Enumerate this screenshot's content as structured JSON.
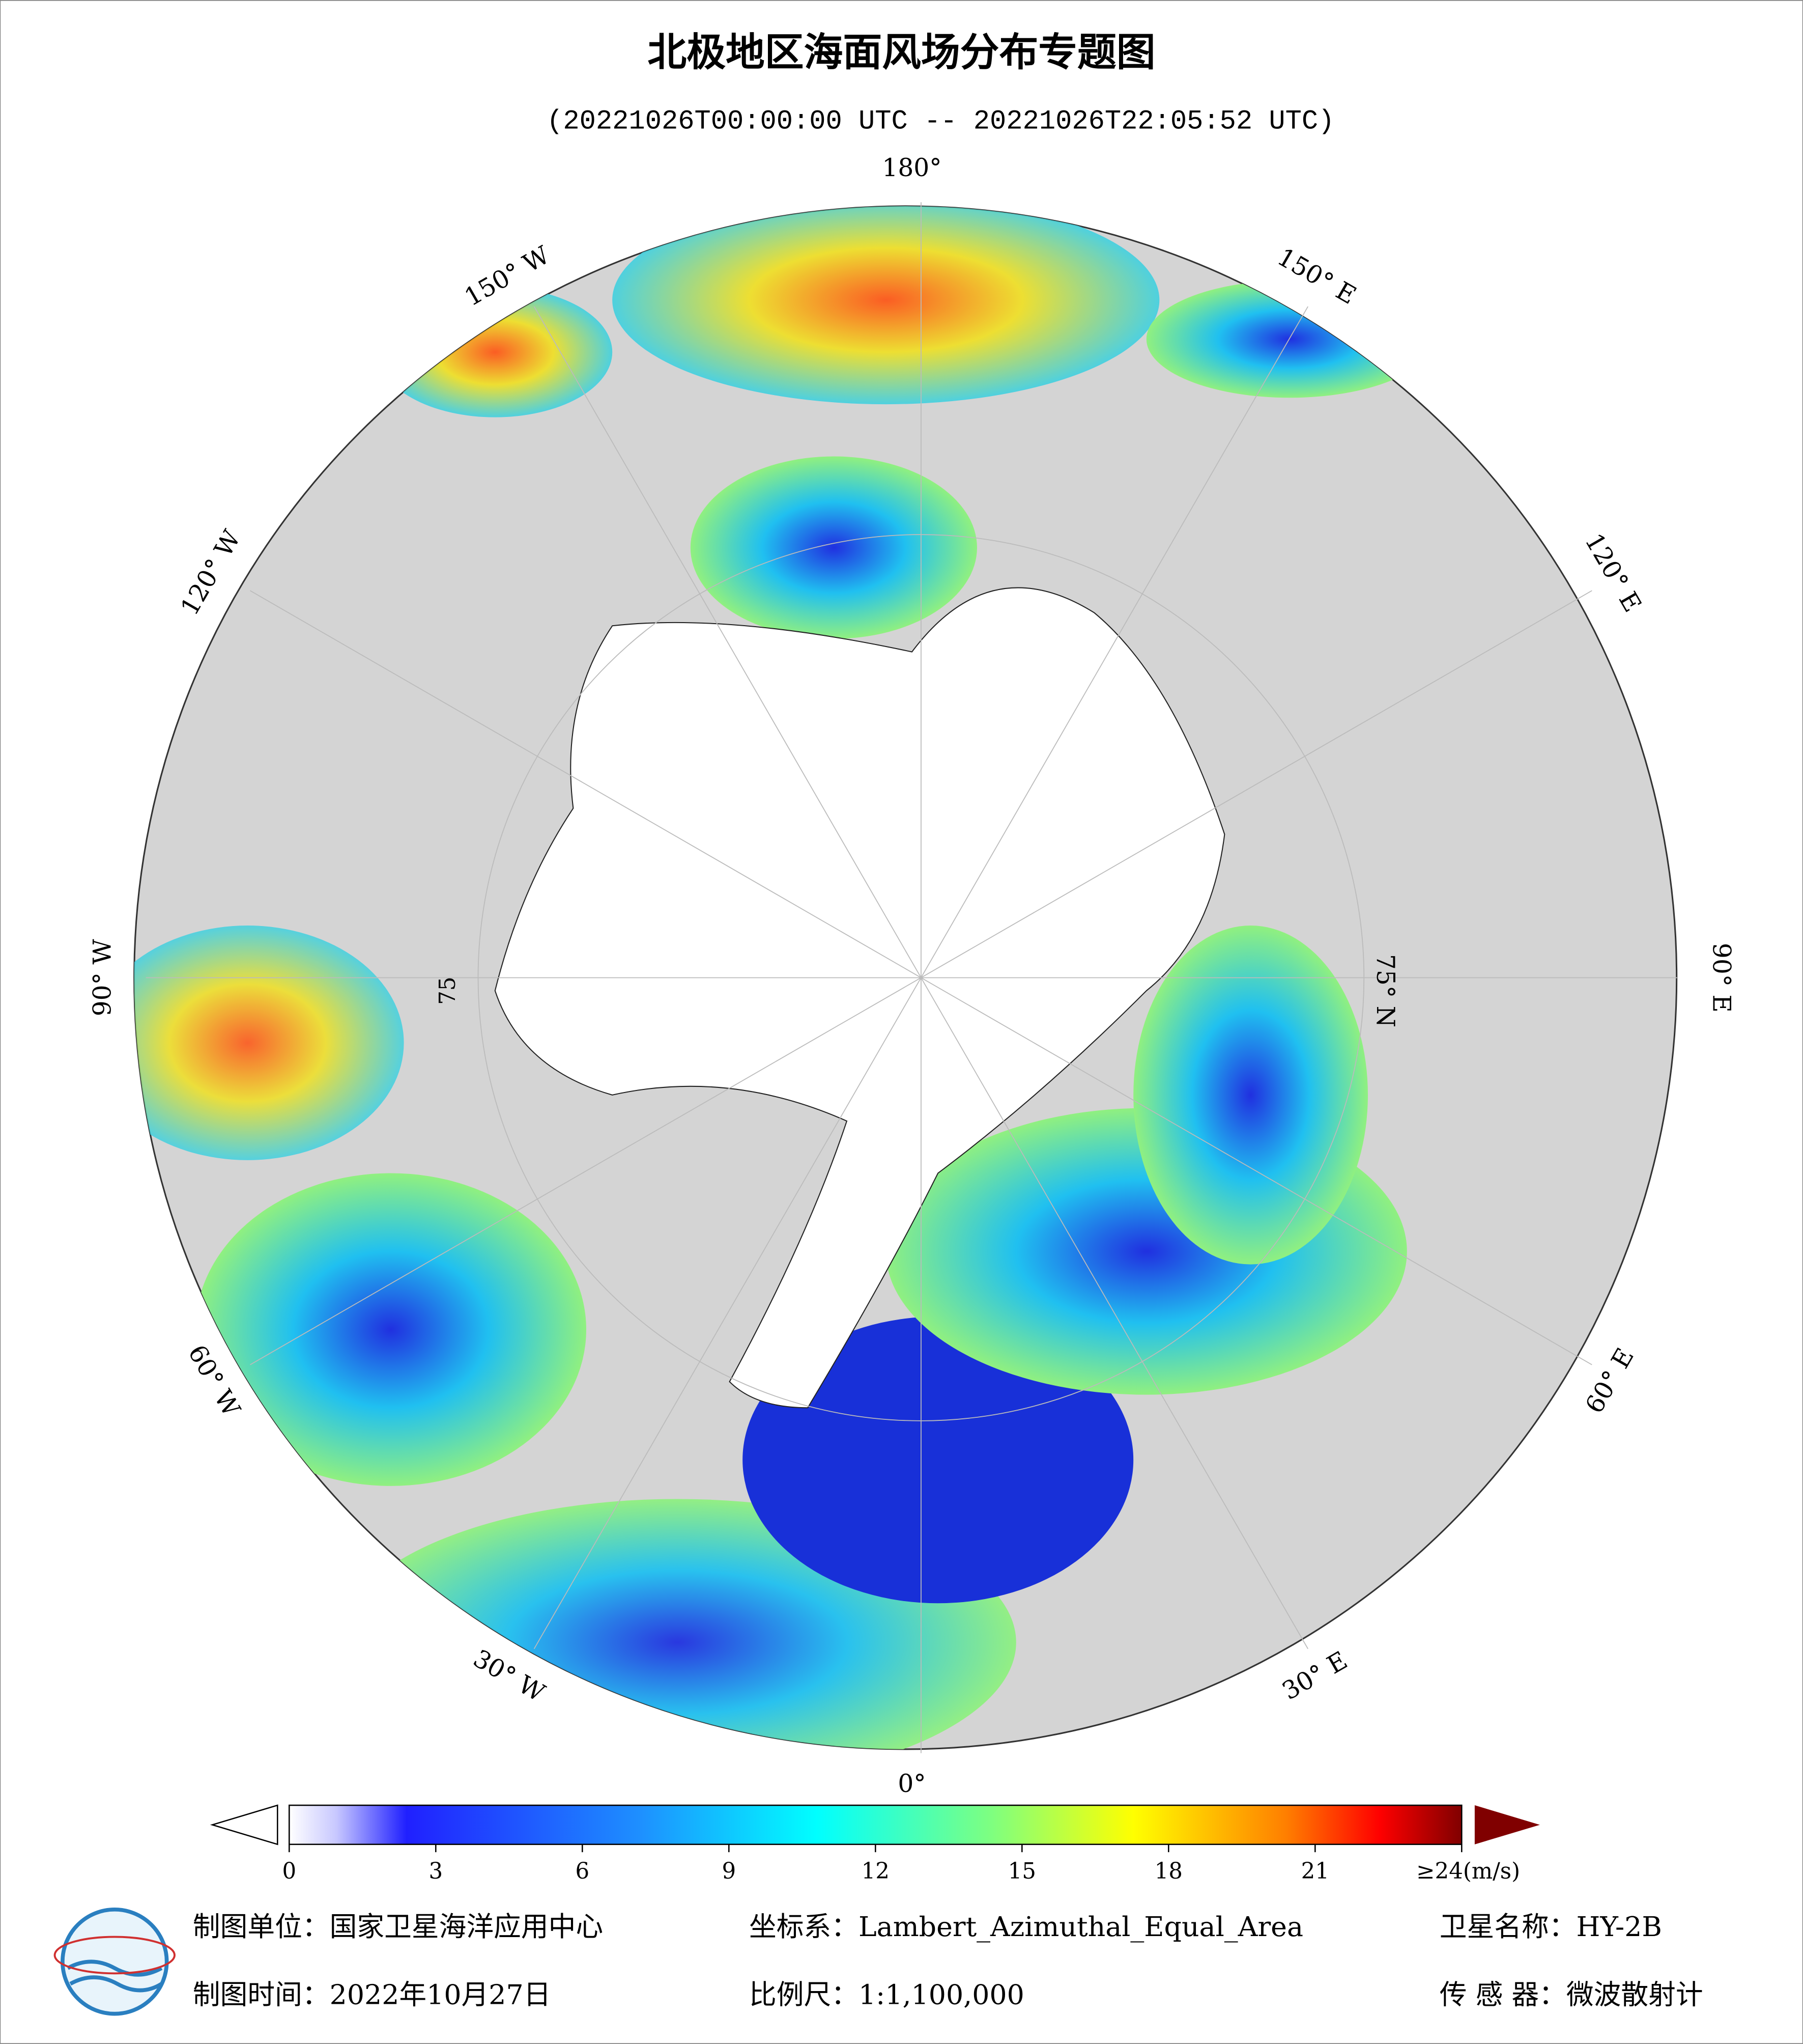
{
  "header": {
    "title": "北极地区海面风场分布专题图",
    "subtitle": "(20221026T00:00:00 UTC -- 20221026T22:05:52 UTC)"
  },
  "map": {
    "longitude_labels": [
      "180°",
      "150° E",
      "120° E",
      "90° E",
      "60° E",
      "30° E",
      "0°",
      "30° W",
      "60° W",
      "90° W",
      "120° W",
      "150° W"
    ],
    "latitude_labels": [
      "75° N",
      "75"
    ]
  },
  "colorbar": {
    "lim": [
      0,
      24
    ],
    "ticks": [
      0,
      3,
      6,
      9,
      12,
      15,
      18,
      21,
      {
        "value": 24,
        "label": "≥24(m/s)"
      }
    ]
  },
  "footer": {
    "unit": "制图单位：国家卫星海洋应用中心",
    "crs": "坐标系：Lambert_Azimuthal_Equal_Area",
    "satellite": "卫星名称：HY-2B",
    "date": "制图时间：2022年10月27日",
    "scale": "比例尺：1:1,100,000",
    "sensor": "传 感 器：微波散射计"
  }
}
